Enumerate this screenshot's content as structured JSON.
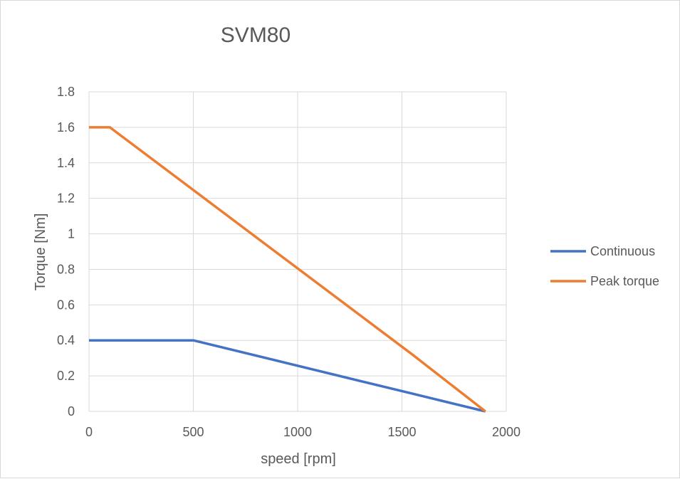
{
  "chart_data": {
    "type": "line",
    "title": "SVM80",
    "xlabel": "speed [rpm]",
    "ylabel": "Torque [Nm]",
    "xlim": [
      0,
      2000
    ],
    "ylim": [
      0,
      1.8
    ],
    "x_ticks": [
      0,
      500,
      1000,
      1500,
      2000
    ],
    "y_ticks": [
      0,
      0.2,
      0.4,
      0.6,
      0.8,
      1,
      1.2,
      1.4,
      1.6,
      1.8
    ],
    "x_tick_labels": [
      "0",
      "500",
      "1000",
      "1500",
      "2000"
    ],
    "y_tick_labels": [
      "0",
      "0.2",
      "0.4",
      "0.6",
      "0.8",
      "1",
      "1.2",
      "1.4",
      "1.6",
      "1.8"
    ],
    "grid": "vertical and horizontal",
    "legend_position": "right",
    "series": [
      {
        "name": "Continuous",
        "color": "#4472C4",
        "points": [
          [
            0,
            0.4
          ],
          [
            500,
            0.4
          ],
          [
            1550,
            0.1
          ],
          [
            1900,
            0
          ]
        ]
      },
      {
        "name": "Peak torque",
        "color": "#ED7D31",
        "points": [
          [
            0,
            1.6
          ],
          [
            100,
            1.6
          ],
          [
            1550,
            0.32
          ],
          [
            1900,
            0
          ]
        ]
      }
    ]
  }
}
